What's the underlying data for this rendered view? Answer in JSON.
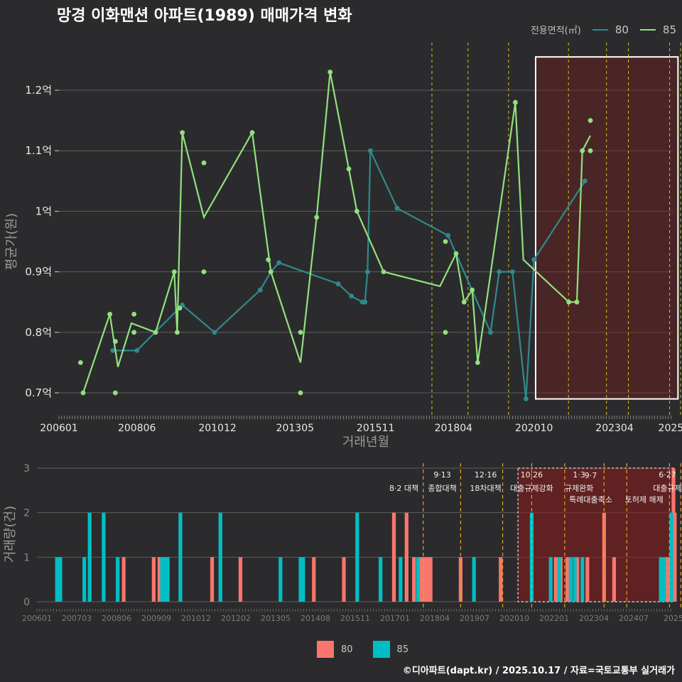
{
  "title": "망경 이화맨션 아파트(1989) 매매가격 변화",
  "legend_top": {
    "title": "전용면적(㎡)",
    "items": [
      {
        "label": "80",
        "color": "#2f8a8c"
      },
      {
        "label": "85",
        "color": "#93e07e"
      }
    ]
  },
  "legend_bottom": {
    "items": [
      {
        "label": "80",
        "color": "#f8766d"
      },
      {
        "label": "85",
        "color": "#00bfc4"
      }
    ]
  },
  "footer": "©디아파트(dapt.kr) / 2025.10.17 / 자료=국토교통부 실거래가",
  "chart_data": [
    {
      "type": "line",
      "title": "망경 이화맨션 아파트(1989) 매매가격 변화",
      "xlabel": "거래년월",
      "ylabel": "평균가(원)",
      "xlim": [
        2006.0,
        2025.08
      ],
      "ylim": [
        0.665,
        1.255
      ],
      "x_ticks": [
        {
          "v": 2006.0,
          "l": "200601"
        },
        {
          "v": 2008.42,
          "l": "200806"
        },
        {
          "v": 2010.92,
          "l": "201012"
        },
        {
          "v": 2013.33,
          "l": "201305"
        },
        {
          "v": 2015.83,
          "l": "201511"
        },
        {
          "v": 2018.25,
          "l": "201804"
        },
        {
          "v": 2020.75,
          "l": "202010"
        },
        {
          "v": 2023.25,
          "l": "202304"
        },
        {
          "v": 2025.0,
          "l": "2025"
        }
      ],
      "y_ticks": [
        {
          "v": 0.7,
          "l": "0.7억"
        },
        {
          "v": 0.8,
          "l": "0.8억"
        },
        {
          "v": 0.9,
          "l": "0.9억"
        },
        {
          "v": 1.0,
          "l": "1억"
        },
        {
          "v": 1.1,
          "l": "1.1억"
        },
        {
          "v": 1.2,
          "l": "1.2억"
        }
      ],
      "policy_lines": [
        2017.58,
        2018.7,
        2019.96,
        2021.82,
        2023.0,
        2023.68,
        2024.96,
        2025.3
      ],
      "highlight": {
        "x0": 2020.8,
        "x1": 2025.22,
        "y0": 0.69,
        "y1": 1.255
      },
      "series": [
        {
          "name": "80",
          "color": "#2f8a8c",
          "line": [
            [
              2007.67,
              0.77
            ],
            [
              2008.42,
              0.77
            ],
            [
              2009.83,
              0.845
            ],
            [
              2010.83,
              0.8
            ],
            [
              2012.25,
              0.87
            ],
            [
              2012.58,
              0.9
            ],
            [
              2012.83,
              0.915
            ],
            [
              2014.67,
              0.88
            ],
            [
              2015.08,
              0.86
            ],
            [
              2015.42,
              0.85
            ],
            [
              2015.5,
              0.85
            ],
            [
              2015.58,
              0.9
            ],
            [
              2015.67,
              1.1
            ],
            [
              2016.5,
              1.005
            ],
            [
              2018.08,
              0.96
            ],
            [
              2019.4,
              0.8
            ],
            [
              2019.67,
              0.9
            ],
            [
              2020.08,
              0.9
            ],
            [
              2020.5,
              0.69
            ],
            [
              2020.75,
              0.92
            ],
            [
              2022.33,
              1.05
            ]
          ],
          "points": [
            [
              2007.67,
              0.77
            ],
            [
              2008.42,
              0.77
            ],
            [
              2009.83,
              0.845
            ],
            [
              2010.83,
              0.8
            ],
            [
              2012.25,
              0.87
            ],
            [
              2012.83,
              0.915
            ],
            [
              2014.67,
              0.88
            ],
            [
              2015.08,
              0.86
            ],
            [
              2015.42,
              0.85
            ],
            [
              2015.5,
              0.85
            ],
            [
              2015.58,
              0.9
            ],
            [
              2015.67,
              1.1
            ],
            [
              2016.5,
              1.005
            ],
            [
              2018.08,
              0.96
            ],
            [
              2019.4,
              0.8
            ],
            [
              2019.67,
              0.9
            ],
            [
              2020.08,
              0.9
            ],
            [
              2020.5,
              0.69
            ],
            [
              2020.75,
              0.92
            ],
            [
              2022.33,
              1.05
            ]
          ]
        },
        {
          "name": "85",
          "color": "#93e07e",
          "line": [
            [
              2006.75,
              0.7
            ],
            [
              2007.58,
              0.83
            ],
            [
              2007.83,
              0.743
            ],
            [
              2008.25,
              0.815
            ],
            [
              2009.0,
              0.8
            ],
            [
              2009.58,
              0.9
            ],
            [
              2009.67,
              0.8
            ],
            [
              2009.83,
              1.13
            ],
            [
              2010.5,
              0.99
            ],
            [
              2012.0,
              1.13
            ],
            [
              2012.58,
              0.9
            ],
            [
              2013.5,
              0.75
            ],
            [
              2014.0,
              0.99
            ],
            [
              2014.42,
              1.23
            ],
            [
              2015.0,
              1.07
            ],
            [
              2015.25,
              1.0
            ],
            [
              2016.08,
              0.9
            ],
            [
              2017.83,
              0.876
            ],
            [
              2018.33,
              0.93
            ],
            [
              2018.58,
              0.85
            ],
            [
              2018.83,
              0.87
            ],
            [
              2019.0,
              0.75
            ],
            [
              2020.17,
              1.18
            ],
            [
              2020.42,
              0.92
            ],
            [
              2021.83,
              0.85
            ],
            [
              2022.08,
              0.85
            ],
            [
              2022.25,
              1.1
            ],
            [
              2022.5,
              1.125
            ]
          ],
          "points": [
            [
              2006.67,
              0.75
            ],
            [
              2006.75,
              0.7
            ],
            [
              2007.58,
              0.83
            ],
            [
              2007.75,
              0.785
            ],
            [
              2007.75,
              0.7
            ],
            [
              2008.33,
              0.83
            ],
            [
              2008.33,
              0.8
            ],
            [
              2009.0,
              0.8
            ],
            [
              2009.58,
              0.9
            ],
            [
              2009.67,
              0.8
            ],
            [
              2009.75,
              0.84
            ],
            [
              2009.83,
              1.13
            ],
            [
              2010.5,
              1.08
            ],
            [
              2010.5,
              0.9
            ],
            [
              2012.0,
              1.13
            ],
            [
              2012.5,
              0.92
            ],
            [
              2012.58,
              0.9
            ],
            [
              2013.5,
              0.8
            ],
            [
              2013.5,
              0.7
            ],
            [
              2014.0,
              0.99
            ],
            [
              2014.42,
              1.23
            ],
            [
              2015.0,
              1.07
            ],
            [
              2015.25,
              1.0
            ],
            [
              2016.08,
              0.9
            ],
            [
              2018.0,
              0.95
            ],
            [
              2018.0,
              0.8
            ],
            [
              2018.33,
              0.93
            ],
            [
              2018.58,
              0.85
            ],
            [
              2018.83,
              0.87
            ],
            [
              2019.0,
              0.75
            ],
            [
              2020.17,
              1.18
            ],
            [
              2021.83,
              0.85
            ],
            [
              2022.08,
              0.85
            ],
            [
              2022.25,
              1.1
            ],
            [
              2022.5,
              1.15
            ],
            [
              2022.5,
              1.1
            ]
          ]
        }
      ]
    },
    {
      "type": "bar",
      "ylabel": "거래량(건)",
      "xlim": [
        2006.0,
        2025.08
      ],
      "ylim": [
        0,
        3
      ],
      "y_ticks": [
        0,
        1,
        2,
        3
      ],
      "x_ticks": [
        "200601",
        "200703",
        "200806",
        "200909",
        "201012",
        "201202",
        "201305",
        "201408",
        "201511",
        "201701",
        "201804",
        "201907",
        "202010",
        "202201",
        "202304",
        "202407",
        "2025"
      ],
      "highlight": {
        "x0": 2020.42,
        "x1": 2025.08
      },
      "policy_lines": [
        2017.58,
        2018.7,
        2019.96,
        2020.83,
        2021.82,
        2023.0,
        2023.68,
        2024.96,
        2025.3
      ],
      "annotations": [
        {
          "x": 2017.0,
          "row": 1,
          "text": "8·2 대책"
        },
        {
          "x": 2018.15,
          "row": 0,
          "text": "9·13"
        },
        {
          "x": 2018.15,
          "row": 1,
          "text": "종합대책"
        },
        {
          "x": 2019.45,
          "row": 0,
          "text": "12·16"
        },
        {
          "x": 2019.45,
          "row": 1,
          "text": "18차대책"
        },
        {
          "x": 2020.83,
          "row": 0,
          "text": "10·26"
        },
        {
          "x": 2020.83,
          "row": 1,
          "text": "대출규제강화"
        },
        {
          "x": 2022.25,
          "row": 0,
          "text": "1·3"
        },
        {
          "x": 2022.25,
          "row": 1,
          "text": "규제완화"
        },
        {
          "x": 2022.6,
          "row": 2,
          "text": "9·7"
        },
        {
          "x": 2022.6,
          "row": 3,
          "text": "특례대출축소"
        },
        {
          "x": 2024.2,
          "row": 3,
          "text": "토허제 해제"
        },
        {
          "x": 2024.9,
          "row": 0,
          "text": "6·27"
        },
        {
          "x": 2024.9,
          "row": 1,
          "text": "대출규제"
        }
      ],
      "series": [
        {
          "name": "80",
          "color": "#f8766d",
          "bars": [
            [
              2008.6,
              1
            ],
            [
              2009.5,
              1
            ],
            [
              2009.67,
              1
            ],
            [
              2011.25,
              1
            ],
            [
              2012.1,
              1
            ],
            [
              2014.3,
              1
            ],
            [
              2015.2,
              1
            ],
            [
              2016.7,
              2
            ],
            [
              2017.08,
              2
            ],
            [
              2017.3,
              1
            ],
            [
              2017.5,
              1
            ],
            [
              2017.6,
              1
            ],
            [
              2017.7,
              1
            ],
            [
              2017.8,
              1
            ],
            [
              2018.7,
              1
            ],
            [
              2019.9,
              1
            ],
            [
              2021.55,
              1
            ],
            [
              2021.7,
              1
            ],
            [
              2021.9,
              1
            ],
            [
              2022.2,
              1
            ],
            [
              2022.5,
              1
            ],
            [
              2023.0,
              2
            ],
            [
              2023.3,
              1
            ],
            [
              2024.9,
              1
            ],
            [
              2024.98,
              1
            ],
            [
              2025.08,
              3
            ],
            [
              2025.12,
              2
            ]
          ]
        },
        {
          "name": "85",
          "color": "#00bfc4",
          "bars": [
            [
              2006.6,
              1
            ],
            [
              2006.7,
              1
            ],
            [
              2007.42,
              1
            ],
            [
              2007.58,
              2
            ],
            [
              2008.0,
              2
            ],
            [
              2008.42,
              1
            ],
            [
              2009.75,
              1
            ],
            [
              2009.83,
              1
            ],
            [
              2009.92,
              1
            ],
            [
              2010.3,
              2
            ],
            [
              2011.5,
              2
            ],
            [
              2013.3,
              1
            ],
            [
              2013.9,
              1
            ],
            [
              2013.98,
              1
            ],
            [
              2015.6,
              2
            ],
            [
              2016.3,
              1
            ],
            [
              2016.9,
              1
            ],
            [
              2017.42,
              1
            ],
            [
              2019.1,
              1
            ],
            [
              2020.83,
              2
            ],
            [
              2021.4,
              1
            ],
            [
              2021.65,
              1
            ],
            [
              2022.0,
              1
            ],
            [
              2022.12,
              1
            ],
            [
              2022.35,
              1
            ],
            [
              2024.7,
              1
            ],
            [
              2024.8,
              1
            ],
            [
              2025.02,
              2
            ]
          ]
        }
      ]
    }
  ]
}
